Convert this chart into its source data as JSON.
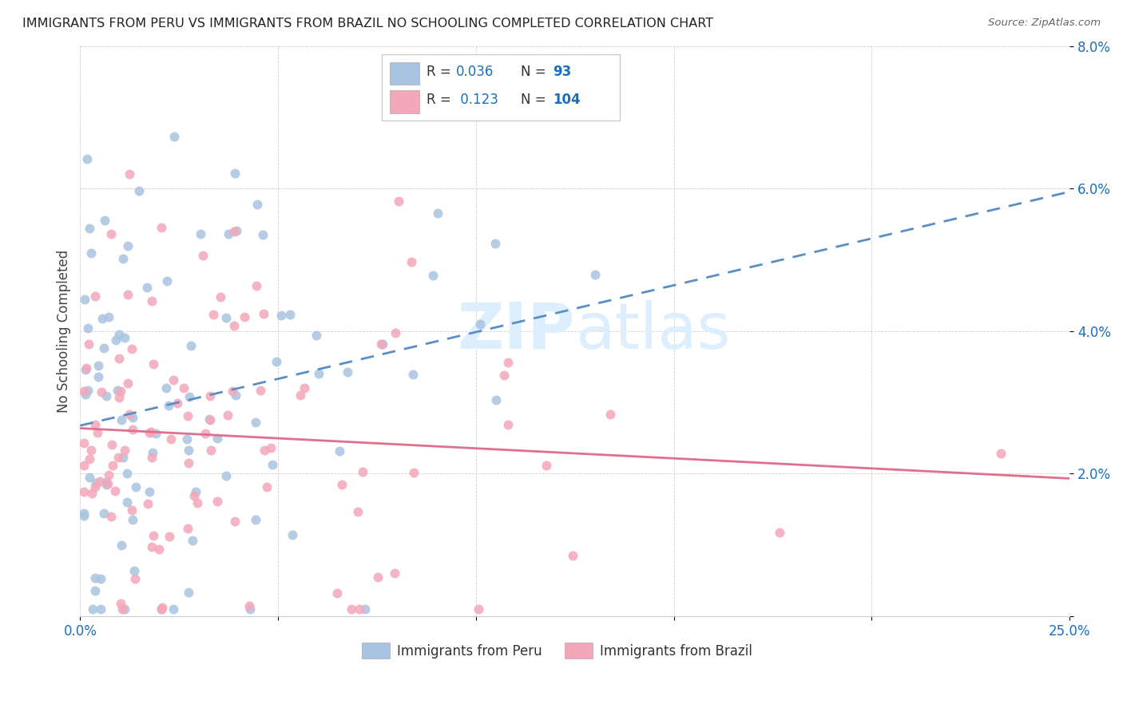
{
  "title": "IMMIGRANTS FROM PERU VS IMMIGRANTS FROM BRAZIL NO SCHOOLING COMPLETED CORRELATION CHART",
  "source": "Source: ZipAtlas.com",
  "ylabel": "No Schooling Completed",
  "color_peru": "#a8c4e0",
  "color_brazil": "#f4a7b9",
  "color_peru_line": "#5b8ec4",
  "color_brazil_line": "#e07090",
  "color_text_blue": "#1a6fbd",
  "color_grid": "#cccccc",
  "watermark_color": "#ddeeff",
  "r_peru": 0.036,
  "n_peru": 93,
  "r_brazil": 0.123,
  "n_brazil": 104,
  "xlim": [
    0.0,
    0.25
  ],
  "ylim": [
    0.0,
    0.08
  ],
  "xtick_vals": [
    0.0,
    0.05,
    0.1,
    0.15,
    0.2,
    0.25
  ],
  "ytick_vals": [
    0.0,
    0.02,
    0.04,
    0.06,
    0.08
  ],
  "xticklabels_show": [
    "0.0%",
    "",
    "",
    "",
    "",
    "25.0%"
  ],
  "yticklabels": [
    "",
    "2.0%",
    "4.0%",
    "6.0%",
    "8.0%"
  ],
  "legend_label1": "Immigrants from Peru",
  "legend_label2": "Immigrants from Brazil"
}
